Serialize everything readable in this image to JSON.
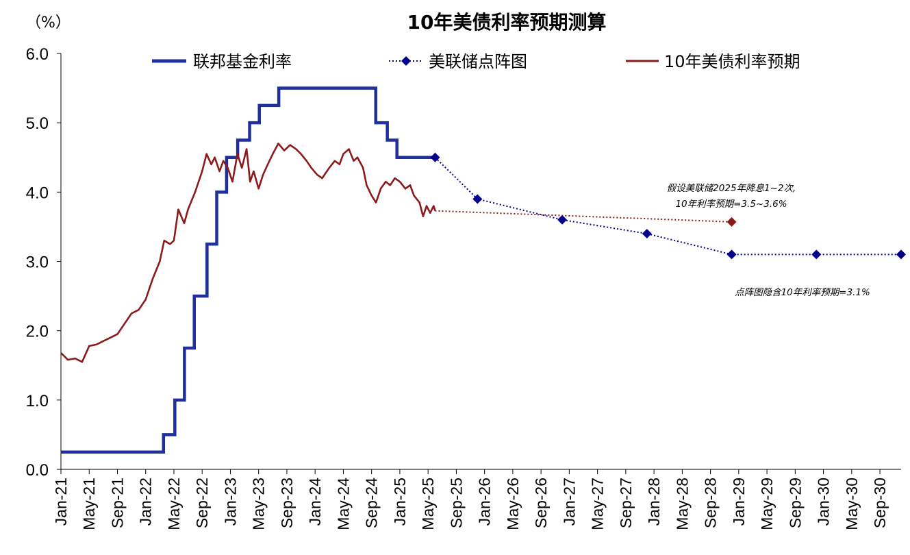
{
  "chart_data": {
    "type": "line",
    "title": "10年美债利率预期测算",
    "unit_label": "（%）",
    "ylim": [
      0,
      6
    ],
    "yticks": [
      "0.0",
      "1.0",
      "2.0",
      "3.0",
      "4.0",
      "5.0",
      "6.0"
    ],
    "xlim": [
      "2021-01",
      "2030-12"
    ],
    "xticks": [
      "Jan-21",
      "May-21",
      "Sep-21",
      "Jan-22",
      "May-22",
      "Sep-22",
      "Jan-23",
      "May-23",
      "Sep-23",
      "Jan-24",
      "May-24",
      "Sep-24",
      "Jan-25",
      "May-25",
      "Sep-25",
      "Jan-26",
      "May-26",
      "Sep-26",
      "Jan-27",
      "May-27",
      "Sep-27",
      "Jan-28",
      "May-28",
      "Sep-28",
      "Jan-29",
      "May-29",
      "Sep-29",
      "Jan-30",
      "May-30",
      "Sep-30"
    ],
    "legend_placement": "top",
    "series": [
      {
        "name": "联邦基金利率",
        "style": "step",
        "color": "#1f2f9c",
        "points": [
          [
            "2021-01-01",
            0.25
          ],
          [
            "2022-03-17",
            0.5
          ],
          [
            "2022-05-05",
            1.0
          ],
          [
            "2022-06-16",
            1.75
          ],
          [
            "2022-07-28",
            2.5
          ],
          [
            "2022-09-22",
            3.25
          ],
          [
            "2022-11-03",
            4.0
          ],
          [
            "2022-12-15",
            4.5
          ],
          [
            "2023-02-02",
            4.75
          ],
          [
            "2023-03-23",
            5.0
          ],
          [
            "2023-05-04",
            5.25
          ],
          [
            "2023-07-27",
            5.5
          ],
          [
            "2024-09-19",
            5.0
          ],
          [
            "2024-11-08",
            4.75
          ],
          [
            "2024-12-19",
            4.5
          ],
          [
            "2025-06-01",
            4.5
          ]
        ]
      },
      {
        "name": "美联储点阵图",
        "style": "dotted-markers",
        "color": "#00008b",
        "points": [
          [
            "2025-06-01",
            4.5
          ],
          [
            "2025-12-01",
            3.9
          ],
          [
            "2026-12-01",
            3.6
          ],
          [
            "2027-12-01",
            3.4
          ],
          [
            "2028-12-01",
            3.1
          ],
          [
            "2029-12-01",
            3.1
          ],
          [
            "2030-12-01",
            3.1
          ]
        ]
      },
      {
        "name": "10年美债利率预期",
        "style": "line",
        "color": "#8b1a1a",
        "points": [
          [
            "2021-01-01",
            1.68
          ],
          [
            "2021-02-01",
            1.58
          ],
          [
            "2021-03-01",
            1.6
          ],
          [
            "2021-04-01",
            1.55
          ],
          [
            "2021-05-01",
            1.78
          ],
          [
            "2021-06-01",
            1.8
          ],
          [
            "2021-07-01",
            1.85
          ],
          [
            "2021-08-01",
            1.9
          ],
          [
            "2021-09-01",
            1.95
          ],
          [
            "2021-10-01",
            2.1
          ],
          [
            "2021-11-01",
            2.25
          ],
          [
            "2021-12-01",
            2.3
          ],
          [
            "2022-01-01",
            2.45
          ],
          [
            "2022-02-01",
            2.75
          ],
          [
            "2022-03-01",
            3.0
          ],
          [
            "2022-03-20",
            3.3
          ],
          [
            "2022-04-15",
            3.25
          ],
          [
            "2022-05-01",
            3.3
          ],
          [
            "2022-05-20",
            3.75
          ],
          [
            "2022-06-15",
            3.55
          ],
          [
            "2022-07-01",
            3.75
          ],
          [
            "2022-08-01",
            4.0
          ],
          [
            "2022-09-01",
            4.3
          ],
          [
            "2022-09-20",
            4.55
          ],
          [
            "2022-10-10",
            4.4
          ],
          [
            "2022-10-25",
            4.5
          ],
          [
            "2022-11-15",
            4.3
          ],
          [
            "2022-12-01",
            4.45
          ],
          [
            "2022-12-20",
            4.35
          ],
          [
            "2023-01-10",
            4.15
          ],
          [
            "2023-02-01",
            4.55
          ],
          [
            "2023-02-20",
            4.35
          ],
          [
            "2023-03-10",
            4.62
          ],
          [
            "2023-03-25",
            4.15
          ],
          [
            "2023-04-10",
            4.3
          ],
          [
            "2023-05-01",
            4.05
          ],
          [
            "2023-05-20",
            4.25
          ],
          [
            "2023-06-10",
            4.4
          ],
          [
            "2023-07-01",
            4.55
          ],
          [
            "2023-07-25",
            4.7
          ],
          [
            "2023-08-20",
            4.6
          ],
          [
            "2023-09-15",
            4.68
          ],
          [
            "2023-10-10",
            4.62
          ],
          [
            "2023-11-01",
            4.55
          ],
          [
            "2023-11-25",
            4.45
          ],
          [
            "2023-12-15",
            4.35
          ],
          [
            "2024-01-10",
            4.25
          ],
          [
            "2024-02-01",
            4.2
          ],
          [
            "2024-03-01",
            4.35
          ],
          [
            "2024-03-25",
            4.45
          ],
          [
            "2024-04-15",
            4.4
          ],
          [
            "2024-05-01",
            4.55
          ],
          [
            "2024-05-25",
            4.62
          ],
          [
            "2024-06-15",
            4.45
          ],
          [
            "2024-07-01",
            4.5
          ],
          [
            "2024-07-25",
            4.35
          ],
          [
            "2024-08-10",
            4.1
          ],
          [
            "2024-09-01",
            3.95
          ],
          [
            "2024-09-20",
            3.85
          ],
          [
            "2024-10-10",
            4.05
          ],
          [
            "2024-11-01",
            4.15
          ],
          [
            "2024-11-20",
            4.1
          ],
          [
            "2024-12-10",
            4.2
          ],
          [
            "2025-01-01",
            4.15
          ],
          [
            "2025-01-25",
            4.05
          ],
          [
            "2025-02-15",
            4.1
          ],
          [
            "2025-03-01",
            3.95
          ],
          [
            "2025-03-25",
            3.85
          ],
          [
            "2025-04-10",
            3.65
          ],
          [
            "2025-04-25",
            3.8
          ],
          [
            "2025-05-10",
            3.7
          ],
          [
            "2025-05-25",
            3.8
          ],
          [
            "2025-06-01",
            3.73
          ]
        ]
      },
      {
        "name": "",
        "style": "dotted-markers",
        "color": "#8b1a1a",
        "points": [
          [
            "2025-06-01",
            3.73
          ],
          [
            "2028-12-01",
            3.57
          ]
        ]
      }
    ],
    "annotations": [
      "假设美联储2025年降息1~2次,",
      "10年利率预期=3.5~3.6%",
      "点阵图隐含10年利率预期=3.1%"
    ]
  }
}
